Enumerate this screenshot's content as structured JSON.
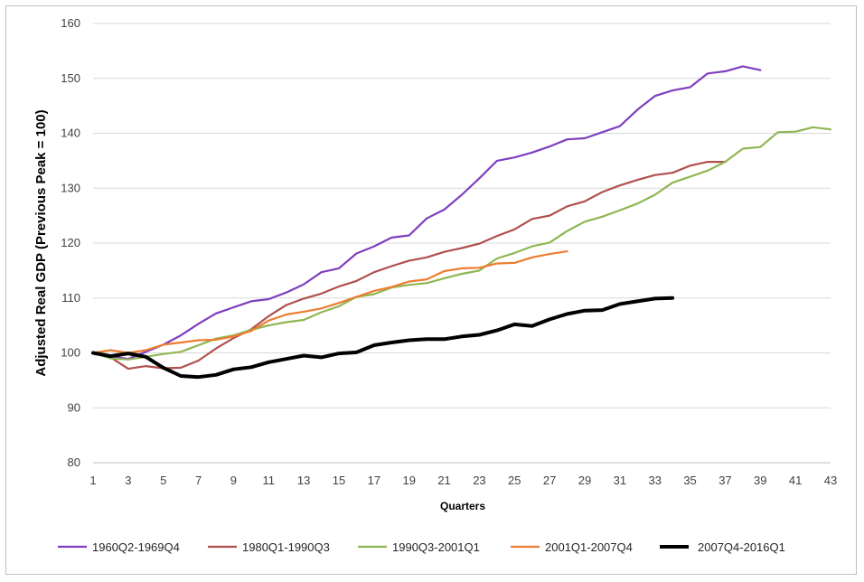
{
  "chart_data": {
    "type": "line",
    "xlabel": "Quarters",
    "ylabel": "Adjusted Real GDP (Previous Peak = 100)",
    "xlim": [
      1,
      43
    ],
    "ylim": [
      80,
      160
    ],
    "xticks": [
      1,
      3,
      5,
      7,
      9,
      11,
      13,
      15,
      17,
      19,
      21,
      23,
      25,
      27,
      29,
      31,
      33,
      35,
      37,
      39,
      41,
      43
    ],
    "yticks": [
      80,
      90,
      100,
      110,
      120,
      130,
      140,
      150,
      160
    ],
    "grid": "horizontal",
    "legend_position": "bottom",
    "series": [
      {
        "name": "1960Q2-1969Q4",
        "color": "#7f3fbf",
        "width": 2.2,
        "values": [
          100,
          99.4,
          98.9,
          100.2,
          101.5,
          103.2,
          105.3,
          107.2,
          108.3,
          109.4,
          109.8,
          111.0,
          112.5,
          114.7,
          115.4,
          118.1,
          119.4,
          121.0,
          121.4,
          124.5,
          126.1,
          128.8,
          131.8,
          135.0,
          135.6,
          136.5,
          137.6,
          138.9,
          139.1,
          140.2,
          141.3,
          144.3,
          146.8,
          147.8,
          148.4,
          150.9,
          151.3,
          152.2,
          151.5
        ]
      },
      {
        "name": "1980Q1-1990Q3",
        "color": "#b0504d",
        "width": 2.2,
        "values": [
          100,
          99.2,
          97.1,
          97.6,
          97.2,
          97.3,
          98.6,
          100.8,
          102.7,
          104.3,
          106.7,
          108.7,
          109.9,
          110.8,
          112.1,
          113.1,
          114.7,
          115.8,
          116.8,
          117.4,
          118.4,
          119.1,
          119.9,
          121.3,
          122.5,
          124.4,
          125.0,
          126.7,
          127.6,
          129.3,
          130.5,
          131.5,
          132.4,
          132.8,
          134.1,
          134.8,
          134.8
        ]
      },
      {
        "name": "1990Q3-2001Q1",
        "color": "#8fb652",
        "width": 2.2,
        "values": [
          100,
          99.0,
          98.8,
          99.3,
          99.8,
          100.2,
          101.4,
          102.6,
          103.2,
          104.2,
          105.0,
          105.6,
          106.0,
          107.4,
          108.5,
          110.2,
          110.7,
          111.9,
          112.4,
          112.7,
          113.6,
          114.4,
          115.0,
          117.2,
          118.2,
          119.4,
          120.1,
          122.2,
          123.9,
          124.8,
          126.0,
          127.2,
          128.8,
          131.0,
          132.1,
          133.2,
          134.8,
          137.2,
          137.5,
          140.2,
          140.3,
          141.1,
          140.7
        ]
      },
      {
        "name": "2001Q1-2007Q4",
        "color": "#ed7d31",
        "width": 2.2,
        "values": [
          100,
          100.5,
          100.0,
          100.5,
          101.5,
          101.9,
          102.3,
          102.4,
          103.0,
          104.0,
          105.9,
          107.0,
          107.5,
          108.1,
          109.1,
          110.2,
          111.3,
          112.0,
          113.0,
          113.4,
          114.9,
          115.4,
          115.5,
          116.3,
          116.4,
          117.4,
          118.0,
          118.5
        ]
      },
      {
        "name": "2007Q4-2016Q1",
        "color": "#000000",
        "width": 4,
        "values": [
          100,
          99.4,
          99.9,
          99.3,
          97.3,
          95.8,
          95.6,
          96.0,
          97.0,
          97.4,
          98.3,
          98.9,
          99.5,
          99.2,
          99.9,
          100.1,
          101.4,
          101.9,
          102.3,
          102.5,
          102.5,
          103.0,
          103.3,
          104.1,
          105.2,
          104.9,
          106.1,
          107.1,
          107.7,
          107.8,
          108.9,
          109.4,
          109.9,
          110.0
        ]
      }
    ]
  }
}
